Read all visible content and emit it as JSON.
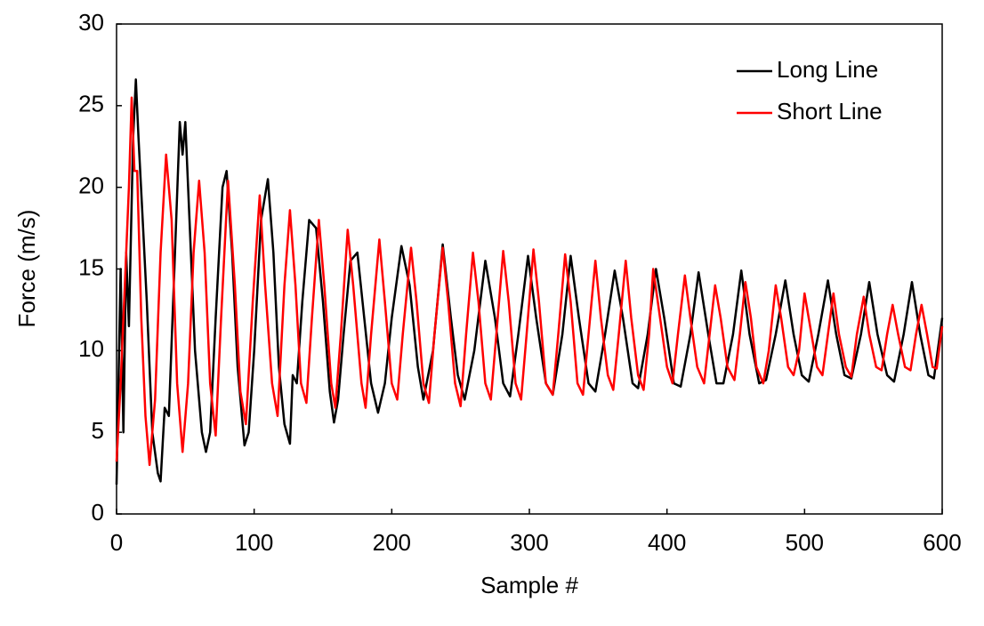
{
  "chart_data": {
    "type": "line",
    "xlabel": "Sample #",
    "ylabel": "Force (m/s)",
    "xlim": [
      0,
      600
    ],
    "xticks": [
      0,
      100,
      200,
      300,
      400,
      500,
      600
    ],
    "ylim": [
      0,
      30
    ],
    "yticks": [
      0,
      5,
      10,
      15,
      20,
      25,
      30
    ],
    "grid": false,
    "legend": "upper right",
    "series": [
      {
        "name": "Long Line",
        "color": "#000000",
        "x": [
          0,
          3,
          5,
          7,
          9,
          12,
          14,
          16,
          19,
          22,
          26,
          30,
          32,
          35,
          38,
          42,
          46,
          48,
          50,
          53,
          57,
          62,
          65,
          68,
          72,
          77,
          80,
          84,
          88,
          93,
          96,
          100,
          105,
          110,
          114,
          118,
          122,
          126,
          128,
          131,
          135,
          140,
          145,
          150,
          155,
          158,
          161,
          165,
          170,
          175,
          180,
          185,
          190,
          195,
          200,
          207,
          213,
          219,
          223,
          230,
          237,
          243,
          248,
          253,
          260,
          268,
          275,
          281,
          286,
          292,
          299,
          305,
          312,
          317,
          324,
          330,
          336,
          343,
          348,
          355,
          362,
          368,
          375,
          379,
          386,
          392,
          398,
          405,
          410,
          417,
          423,
          430,
          436,
          441,
          448,
          454,
          460,
          467,
          472,
          479,
          486,
          492,
          498,
          503,
          510,
          517,
          523,
          529,
          534,
          541,
          547,
          553,
          560,
          565,
          572,
          578,
          584,
          590,
          594,
          600
        ],
        "values": [
          1.8,
          15,
          5,
          16,
          11.5,
          23,
          26.6,
          23,
          18,
          13,
          5,
          2.5,
          2,
          6.5,
          6,
          15,
          24,
          22,
          24,
          18,
          10,
          5,
          3.8,
          5,
          12,
          20,
          21,
          16,
          9,
          4.2,
          5,
          10,
          18,
          20.5,
          16,
          9,
          5.5,
          4.3,
          8.5,
          8,
          13,
          18,
          17.5,
          13,
          7.5,
          5.6,
          7,
          11,
          15.5,
          16,
          12,
          8,
          6.2,
          8,
          12,
          16.4,
          14,
          9,
          7,
          10,
          16.5,
          12,
          8.5,
          7,
          10,
          15.5,
          12,
          8,
          7.2,
          11,
          15.8,
          12,
          8,
          7.3,
          11,
          15.8,
          12,
          8,
          7.5,
          11,
          14.9,
          12,
          8,
          7.7,
          11,
          15,
          12,
          8,
          7.8,
          11,
          14.8,
          11,
          8,
          8,
          11,
          14.9,
          11,
          8,
          8.2,
          11,
          14.3,
          11,
          8.5,
          8.1,
          11,
          14.3,
          11,
          8.5,
          8.3,
          11,
          14.2,
          11,
          8.5,
          8.1,
          11,
          14.2,
          11,
          8.5,
          8.3,
          12
        ]
      },
      {
        "name": "Short Line",
        "color": "#ff0000",
        "x": [
          0,
          3,
          6,
          9,
          11,
          13,
          15,
          18,
          21,
          24,
          28,
          32,
          36,
          40,
          44,
          48,
          52,
          56,
          60,
          64,
          68,
          72,
          76,
          81,
          86,
          90,
          94,
          99,
          104,
          108,
          113,
          117,
          122,
          126,
          130,
          134,
          138,
          142,
          147,
          151,
          156,
          159,
          163,
          168,
          172,
          178,
          181,
          185,
          191,
          195,
          200,
          204,
          208,
          214,
          218,
          223,
          227,
          231,
          237,
          241,
          246,
          250,
          254,
          259,
          263,
          268,
          272,
          276,
          281,
          285,
          290,
          294,
          298,
          303,
          307,
          312,
          317,
          321,
          326,
          330,
          335,
          339,
          343,
          348,
          352,
          357,
          361,
          365,
          370,
          374,
          379,
          383,
          387,
          390,
          395,
          400,
          404,
          408,
          413,
          417,
          422,
          427,
          431,
          435,
          439,
          444,
          449,
          453,
          457,
          461,
          465,
          470,
          474,
          479,
          483,
          488,
          492,
          496,
          500,
          505,
          509,
          513,
          517,
          521,
          525,
          530,
          534,
          538,
          543,
          547,
          552,
          556,
          560,
          564,
          568,
          573,
          577,
          581,
          585,
          589,
          593,
          596,
          600
        ],
        "values": [
          3.2,
          8,
          14,
          20,
          25.5,
          21,
          21,
          12,
          6,
          3,
          7,
          16,
          22,
          18,
          8,
          3.8,
          8,
          16,
          20.4,
          16,
          8,
          4.8,
          12,
          20.4,
          14,
          7.5,
          5.5,
          13,
          19.5,
          14,
          8,
          6,
          14,
          18.6,
          14,
          8,
          6.8,
          12,
          18,
          14,
          8,
          6.5,
          11,
          17.4,
          14,
          8,
          6.5,
          11,
          16.8,
          13,
          8,
          7,
          11,
          16.3,
          13,
          8,
          6.8,
          11,
          16.3,
          13,
          8,
          6.6,
          11,
          16,
          13,
          8,
          7,
          11,
          16.1,
          13,
          8,
          7,
          11,
          16.2,
          13,
          8,
          7.3,
          11,
          15.9,
          13,
          8,
          7.3,
          11,
          15.5,
          12,
          8.5,
          7.6,
          11,
          15.5,
          12,
          8.5,
          7.6,
          11,
          15,
          12,
          9,
          8,
          11,
          14.6,
          12,
          9,
          8,
          11,
          14,
          12,
          9,
          8.2,
          11,
          14.2,
          12,
          9,
          8,
          10,
          14,
          12,
          9,
          8.5,
          10,
          13.5,
          11,
          9,
          8.5,
          11,
          13.5,
          11,
          9,
          8.4,
          11,
          13.3,
          11,
          9,
          8.8,
          11,
          12.8,
          11,
          9,
          8.8,
          11,
          12.8,
          11,
          9,
          8.9,
          11.5
        ]
      }
    ]
  }
}
